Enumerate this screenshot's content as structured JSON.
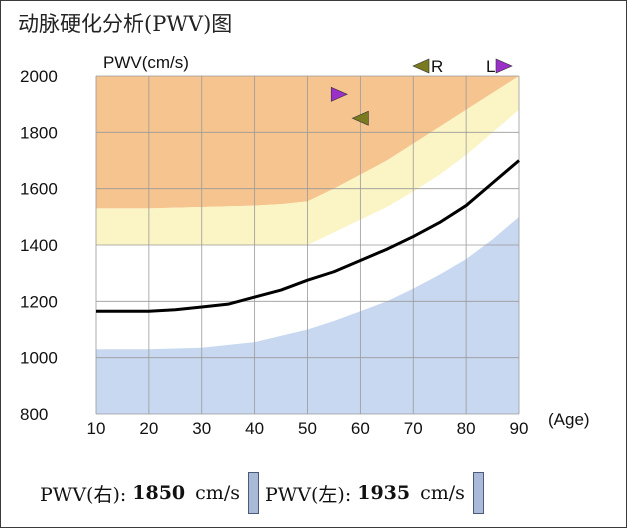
{
  "title": "动脉硬化分析(PWV)图",
  "chart_data": {
    "type": "line",
    "ylabel": "PWV(cm/s)",
    "xlabel": "(Age)",
    "xlim": [
      10,
      90
    ],
    "ylim": [
      800,
      2000
    ],
    "x_ticks": [
      "10",
      "20",
      "30",
      "40",
      "50",
      "60",
      "70",
      "80",
      "90"
    ],
    "y_ticks": [
      "2000",
      "1800",
      "1600",
      "1400",
      "1200",
      "1000",
      "800"
    ],
    "grid": true,
    "series": [
      {
        "type": "line",
        "color": "#000000",
        "x": [
          10,
          20,
          25,
          30,
          35,
          40,
          45,
          50,
          55,
          60,
          65,
          70,
          75,
          80,
          85,
          90
        ],
        "y": [
          1165,
          1165,
          1170,
          1180,
          1190,
          1215,
          1240,
          1275,
          1305,
          1345,
          1385,
          1430,
          1480,
          1540,
          1620,
          1700
        ]
      }
    ],
    "bands": [
      {
        "color": "#f6c48e",
        "upper": [
          [
            10,
            2000
          ],
          [
            90,
            2000
          ]
        ],
        "lower": [
          [
            10,
            1530
          ],
          [
            20,
            1530
          ],
          [
            30,
            1535
          ],
          [
            40,
            1540
          ],
          [
            45,
            1545
          ],
          [
            50,
            1555
          ],
          [
            55,
            1600
          ],
          [
            60,
            1650
          ],
          [
            65,
            1700
          ],
          [
            70,
            1760
          ],
          [
            75,
            1820
          ],
          [
            80,
            1880
          ],
          [
            85,
            1940
          ],
          [
            90,
            2000
          ]
        ]
      },
      {
        "color": "#fbf4c4",
        "upper": [
          [
            10,
            1530
          ],
          [
            20,
            1530
          ],
          [
            30,
            1535
          ],
          [
            40,
            1540
          ],
          [
            45,
            1545
          ],
          [
            50,
            1555
          ],
          [
            55,
            1600
          ],
          [
            60,
            1650
          ],
          [
            65,
            1700
          ],
          [
            70,
            1760
          ],
          [
            75,
            1820
          ],
          [
            80,
            1880
          ],
          [
            85,
            1940
          ],
          [
            90,
            2000
          ]
        ],
        "lower": [
          [
            10,
            1400
          ],
          [
            50,
            1400
          ],
          [
            55,
            1445
          ],
          [
            60,
            1490
          ],
          [
            65,
            1535
          ],
          [
            70,
            1590
          ],
          [
            75,
            1650
          ],
          [
            80,
            1720
          ],
          [
            85,
            1800
          ],
          [
            90,
            1880
          ]
        ]
      },
      {
        "color": "#c8d8f0",
        "upper": [
          [
            10,
            1030
          ],
          [
            20,
            1030
          ],
          [
            30,
            1035
          ],
          [
            40,
            1055
          ],
          [
            50,
            1100
          ],
          [
            55,
            1130
          ],
          [
            60,
            1165
          ],
          [
            65,
            1200
          ],
          [
            70,
            1245
          ],
          [
            75,
            1295
          ],
          [
            80,
            1350
          ],
          [
            85,
            1420
          ],
          [
            90,
            1500
          ]
        ],
        "lower": [
          [
            10,
            800
          ],
          [
            90,
            800
          ]
        ]
      }
    ],
    "markers": [
      {
        "label": "R",
        "shape": "triangle-left",
        "color": "#7a7a20",
        "x": 60,
        "y": 1850
      },
      {
        "label": "L",
        "shape": "triangle-right",
        "color": "#9b30c8",
        "x": 56,
        "y": 1935
      }
    ]
  },
  "footer": {
    "right_label": "PWV(右):",
    "right_value": "1850",
    "left_label": "PWV(左):",
    "left_value": "1935",
    "unit": "cm/s"
  }
}
